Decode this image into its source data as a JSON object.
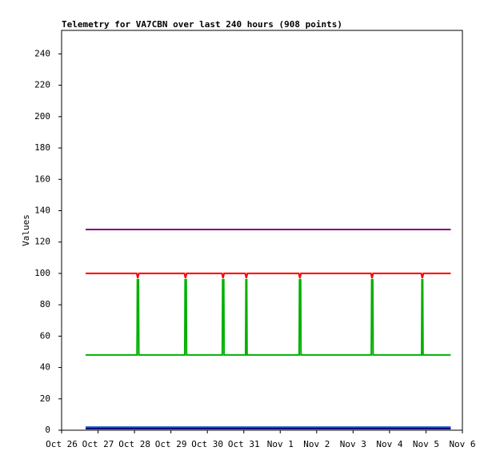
{
  "chart_data": {
    "type": "line",
    "title": "Telemetry for VA7CBN over last 240 hours (908 points)",
    "y_label": "Values",
    "xlim": [
      0,
      11
    ],
    "xticks": [
      {
        "value": 0,
        "label": "Oct 26"
      },
      {
        "value": 1,
        "label": "Oct 27"
      },
      {
        "value": 2,
        "label": "Oct 28"
      },
      {
        "value": 3,
        "label": "Oct 29"
      },
      {
        "value": 4,
        "label": "Oct 30"
      },
      {
        "value": 5,
        "label": "Oct 31"
      },
      {
        "value": 6,
        "label": "Nov 1"
      },
      {
        "value": 7,
        "label": "Nov 2"
      },
      {
        "value": 8,
        "label": "Nov 3"
      },
      {
        "value": 9,
        "label": "Nov 4"
      },
      {
        "value": 10,
        "label": "Nov 5"
      },
      {
        "value": 11,
        "label": "Nov 6"
      }
    ],
    "ylim": [
      0,
      255
    ],
    "yticks": [
      0,
      20,
      40,
      60,
      80,
      100,
      120,
      140,
      160,
      180,
      200,
      220,
      240
    ],
    "series": [
      {
        "color": "#800080",
        "x": [
          0.66,
          10.68
        ],
        "values": [
          128,
          128
        ]
      },
      {
        "color": "#00b000",
        "x": [
          0.66,
          2.07,
          2.08,
          2.11,
          2.12,
          3.38,
          3.39,
          3.42,
          3.43,
          4.41,
          4.42,
          4.45,
          4.46,
          5.05,
          5.06,
          5.08,
          5.09,
          6.52,
          6.53,
          6.56,
          6.57,
          8.5,
          8.51,
          8.54,
          8.55,
          9.88,
          9.89,
          9.91,
          9.92,
          10.68
        ],
        "values": [
          48,
          48,
          96,
          96,
          48,
          48,
          96,
          96,
          48,
          48,
          96,
          96,
          48,
          48,
          96,
          96,
          48,
          48,
          96,
          96,
          48,
          48,
          96,
          96,
          48,
          48,
          96,
          96,
          48,
          48
        ]
      },
      {
        "color": "#ff0000",
        "x": [
          0.66,
          2.06,
          2.09,
          2.12,
          3.37,
          3.4,
          3.43,
          4.4,
          4.43,
          4.46,
          5.04,
          5.07,
          5.1,
          6.51,
          6.54,
          6.57,
          8.49,
          8.52,
          8.55,
          9.87,
          9.9,
          9.93,
          10.68
        ],
        "values": [
          100,
          100,
          97,
          100,
          100,
          97,
          100,
          100,
          97,
          100,
          100,
          97,
          100,
          100,
          97,
          100,
          100,
          97,
          100,
          100,
          97,
          100,
          100
        ]
      },
      {
        "color": "#1f5fbf",
        "x": [
          0.66,
          10.68
        ],
        "values": [
          2,
          2
        ]
      },
      {
        "color": "#000080",
        "x": [
          0.66,
          10.68
        ],
        "values": [
          1,
          1
        ]
      }
    ]
  }
}
